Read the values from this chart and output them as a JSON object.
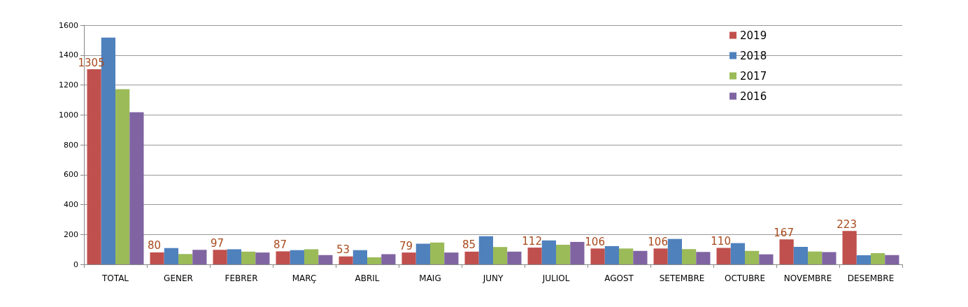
{
  "chart_data": {
    "type": "bar",
    "categories": [
      "TOTAL",
      "GENER",
      "FEBRER",
      "MARÇ",
      "ABRIL",
      "MAIG",
      "JUNY",
      "JULIOL",
      "AGOST",
      "SETEMBRE",
      "OCTUBRE",
      "NOVEMBRE",
      "DESEMBRE"
    ],
    "series": [
      {
        "name": "2019",
        "color": "#c0504d",
        "values": [
          1305,
          80,
          97,
          87,
          53,
          79,
          85,
          112,
          106,
          106,
          110,
          167,
          223
        ],
        "value_labels": [
          "1305",
          "80",
          "97",
          "87",
          "53",
          "79",
          "85",
          "112",
          "106",
          "106",
          "110",
          "167",
          "223"
        ]
      },
      {
        "name": "2018",
        "color": "#4f81bd",
        "values": [
          1517,
          109,
          101,
          95,
          95,
          138,
          188,
          160,
          122,
          170,
          142,
          117,
          61
        ]
      },
      {
        "name": "2017",
        "color": "#9bbb59",
        "values": [
          1172,
          69,
          85,
          101,
          47,
          146,
          116,
          131,
          106,
          102,
          90,
          86,
          75
        ]
      },
      {
        "name": "2016",
        "color": "#8064a2",
        "values": [
          1017,
          97,
          79,
          62,
          68,
          79,
          85,
          150,
          90,
          83,
          67,
          82,
          62
        ]
      }
    ],
    "ylim": [
      0,
      1600
    ],
    "yticks": [
      0,
      200,
      400,
      600,
      800,
      1000,
      1200,
      1400,
      1600
    ],
    "grid": "y",
    "legend": "top right"
  }
}
